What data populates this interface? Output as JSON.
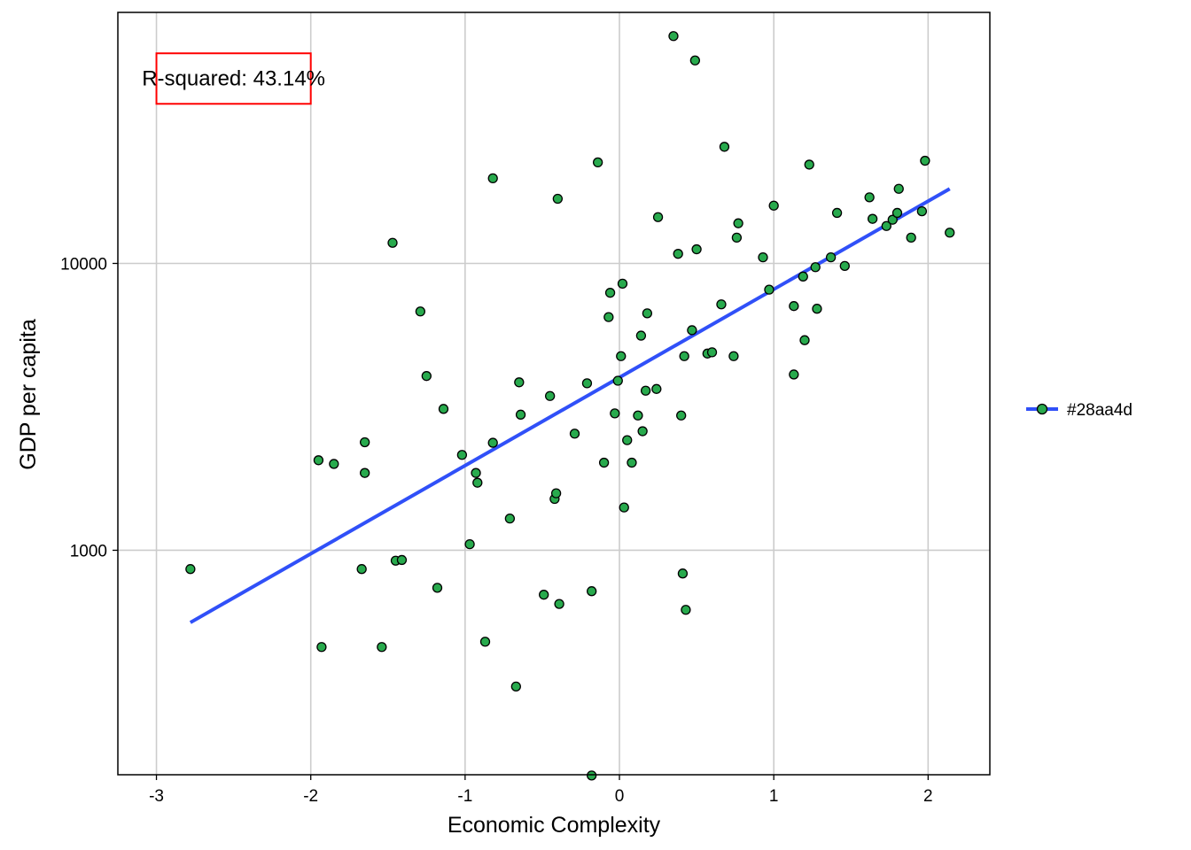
{
  "chart_data": {
    "type": "scatter",
    "xlabel": "Economic Complexity",
    "ylabel": "GDP per capita",
    "y_scale": "log10",
    "xlim": [
      -3.25,
      2.4
    ],
    "ylim": [
      165,
      75000
    ],
    "x_ticks": [
      {
        "value": -3,
        "label": "-3"
      },
      {
        "value": -2,
        "label": "-2"
      },
      {
        "value": -1,
        "label": "-1"
      },
      {
        "value": 0,
        "label": "0"
      },
      {
        "value": 1,
        "label": "1"
      },
      {
        "value": 2,
        "label": "2"
      }
    ],
    "y_ticks": [
      {
        "value": 1000,
        "label": "1000"
      },
      {
        "value": 10000,
        "label": "10000"
      }
    ],
    "grid": true,
    "point_color": "#28aa4d",
    "line_color": "#3050f8",
    "annotation": {
      "text": "R-squared: 43.14%",
      "box_color": "#ff0000",
      "x_range": [
        -3,
        -2
      ],
      "y_range": [
        36000,
        54000
      ]
    },
    "legend": {
      "label": "#28aa4d",
      "placement": "right"
    },
    "fit_line": {
      "x": [
        -2.78,
        2.14
      ],
      "y": [
        560,
        18200
      ]
    },
    "points": [
      {
        "x": -2.78,
        "y": 860
      },
      {
        "x": -1.95,
        "y": 2060
      },
      {
        "x": -1.93,
        "y": 460
      },
      {
        "x": -1.85,
        "y": 2000
      },
      {
        "x": -1.67,
        "y": 860
      },
      {
        "x": -1.65,
        "y": 1860
      },
      {
        "x": -1.65,
        "y": 2380
      },
      {
        "x": -1.54,
        "y": 460
      },
      {
        "x": -1.47,
        "y": 11800
      },
      {
        "x": -1.45,
        "y": 920
      },
      {
        "x": -1.41,
        "y": 925
      },
      {
        "x": -1.29,
        "y": 6800
      },
      {
        "x": -1.25,
        "y": 4050
      },
      {
        "x": -1.18,
        "y": 740
      },
      {
        "x": -1.14,
        "y": 3110
      },
      {
        "x": -1.02,
        "y": 2150
      },
      {
        "x": -0.97,
        "y": 1050
      },
      {
        "x": -0.93,
        "y": 1860
      },
      {
        "x": -0.92,
        "y": 1720
      },
      {
        "x": -0.87,
        "y": 480
      },
      {
        "x": -0.82,
        "y": 19800
      },
      {
        "x": -0.82,
        "y": 2370
      },
      {
        "x": -0.71,
        "y": 1290
      },
      {
        "x": -0.67,
        "y": 335
      },
      {
        "x": -0.65,
        "y": 3850
      },
      {
        "x": -0.64,
        "y": 2970
      },
      {
        "x": -0.49,
        "y": 700
      },
      {
        "x": -0.45,
        "y": 3450
      },
      {
        "x": -0.42,
        "y": 1510
      },
      {
        "x": -0.41,
        "y": 1580
      },
      {
        "x": -0.4,
        "y": 16800
      },
      {
        "x": -0.39,
        "y": 650
      },
      {
        "x": -0.29,
        "y": 2550
      },
      {
        "x": -0.21,
        "y": 3820
      },
      {
        "x": -0.18,
        "y": 720
      },
      {
        "x": -0.18,
        "y": 164
      },
      {
        "x": -0.14,
        "y": 22500
      },
      {
        "x": -0.1,
        "y": 2020
      },
      {
        "x": -0.07,
        "y": 6500
      },
      {
        "x": -0.06,
        "y": 7900
      },
      {
        "x": -0.03,
        "y": 3000
      },
      {
        "x": -0.01,
        "y": 3900
      },
      {
        "x": 0.01,
        "y": 4750
      },
      {
        "x": 0.02,
        "y": 8500
      },
      {
        "x": 0.03,
        "y": 1410
      },
      {
        "x": 0.05,
        "y": 2420
      },
      {
        "x": 0.08,
        "y": 2020
      },
      {
        "x": 0.12,
        "y": 2950
      },
      {
        "x": 0.14,
        "y": 5600
      },
      {
        "x": 0.15,
        "y": 2600
      },
      {
        "x": 0.17,
        "y": 3600
      },
      {
        "x": 0.18,
        "y": 6700
      },
      {
        "x": 0.24,
        "y": 3650
      },
      {
        "x": 0.25,
        "y": 14500
      },
      {
        "x": 0.35,
        "y": 62000
      },
      {
        "x": 0.38,
        "y": 10800
      },
      {
        "x": 0.4,
        "y": 2950
      },
      {
        "x": 0.41,
        "y": 830
      },
      {
        "x": 0.42,
        "y": 4750
      },
      {
        "x": 0.43,
        "y": 620
      },
      {
        "x": 0.47,
        "y": 5850
      },
      {
        "x": 0.49,
        "y": 51000
      },
      {
        "x": 0.5,
        "y": 11200
      },
      {
        "x": 0.57,
        "y": 4850
      },
      {
        "x": 0.6,
        "y": 4900
      },
      {
        "x": 0.66,
        "y": 7200
      },
      {
        "x": 0.68,
        "y": 25500
      },
      {
        "x": 0.74,
        "y": 4750
      },
      {
        "x": 0.76,
        "y": 12300
      },
      {
        "x": 0.77,
        "y": 13800
      },
      {
        "x": 0.93,
        "y": 10500
      },
      {
        "x": 0.97,
        "y": 8100
      },
      {
        "x": 1.0,
        "y": 15900
      },
      {
        "x": 1.13,
        "y": 7100
      },
      {
        "x": 1.13,
        "y": 4100
      },
      {
        "x": 1.19,
        "y": 9000
      },
      {
        "x": 1.2,
        "y": 5400
      },
      {
        "x": 1.23,
        "y": 22100
      },
      {
        "x": 1.27,
        "y": 9700
      },
      {
        "x": 1.28,
        "y": 6950
      },
      {
        "x": 1.37,
        "y": 10500
      },
      {
        "x": 1.41,
        "y": 15000
      },
      {
        "x": 1.46,
        "y": 9800
      },
      {
        "x": 1.62,
        "y": 17000
      },
      {
        "x": 1.64,
        "y": 14300
      },
      {
        "x": 1.73,
        "y": 13500
      },
      {
        "x": 1.77,
        "y": 14200
      },
      {
        "x": 1.8,
        "y": 15000
      },
      {
        "x": 1.81,
        "y": 18200
      },
      {
        "x": 1.89,
        "y": 12300
      },
      {
        "x": 1.96,
        "y": 15200
      },
      {
        "x": 1.98,
        "y": 22800
      },
      {
        "x": 2.14,
        "y": 12800
      }
    ]
  }
}
